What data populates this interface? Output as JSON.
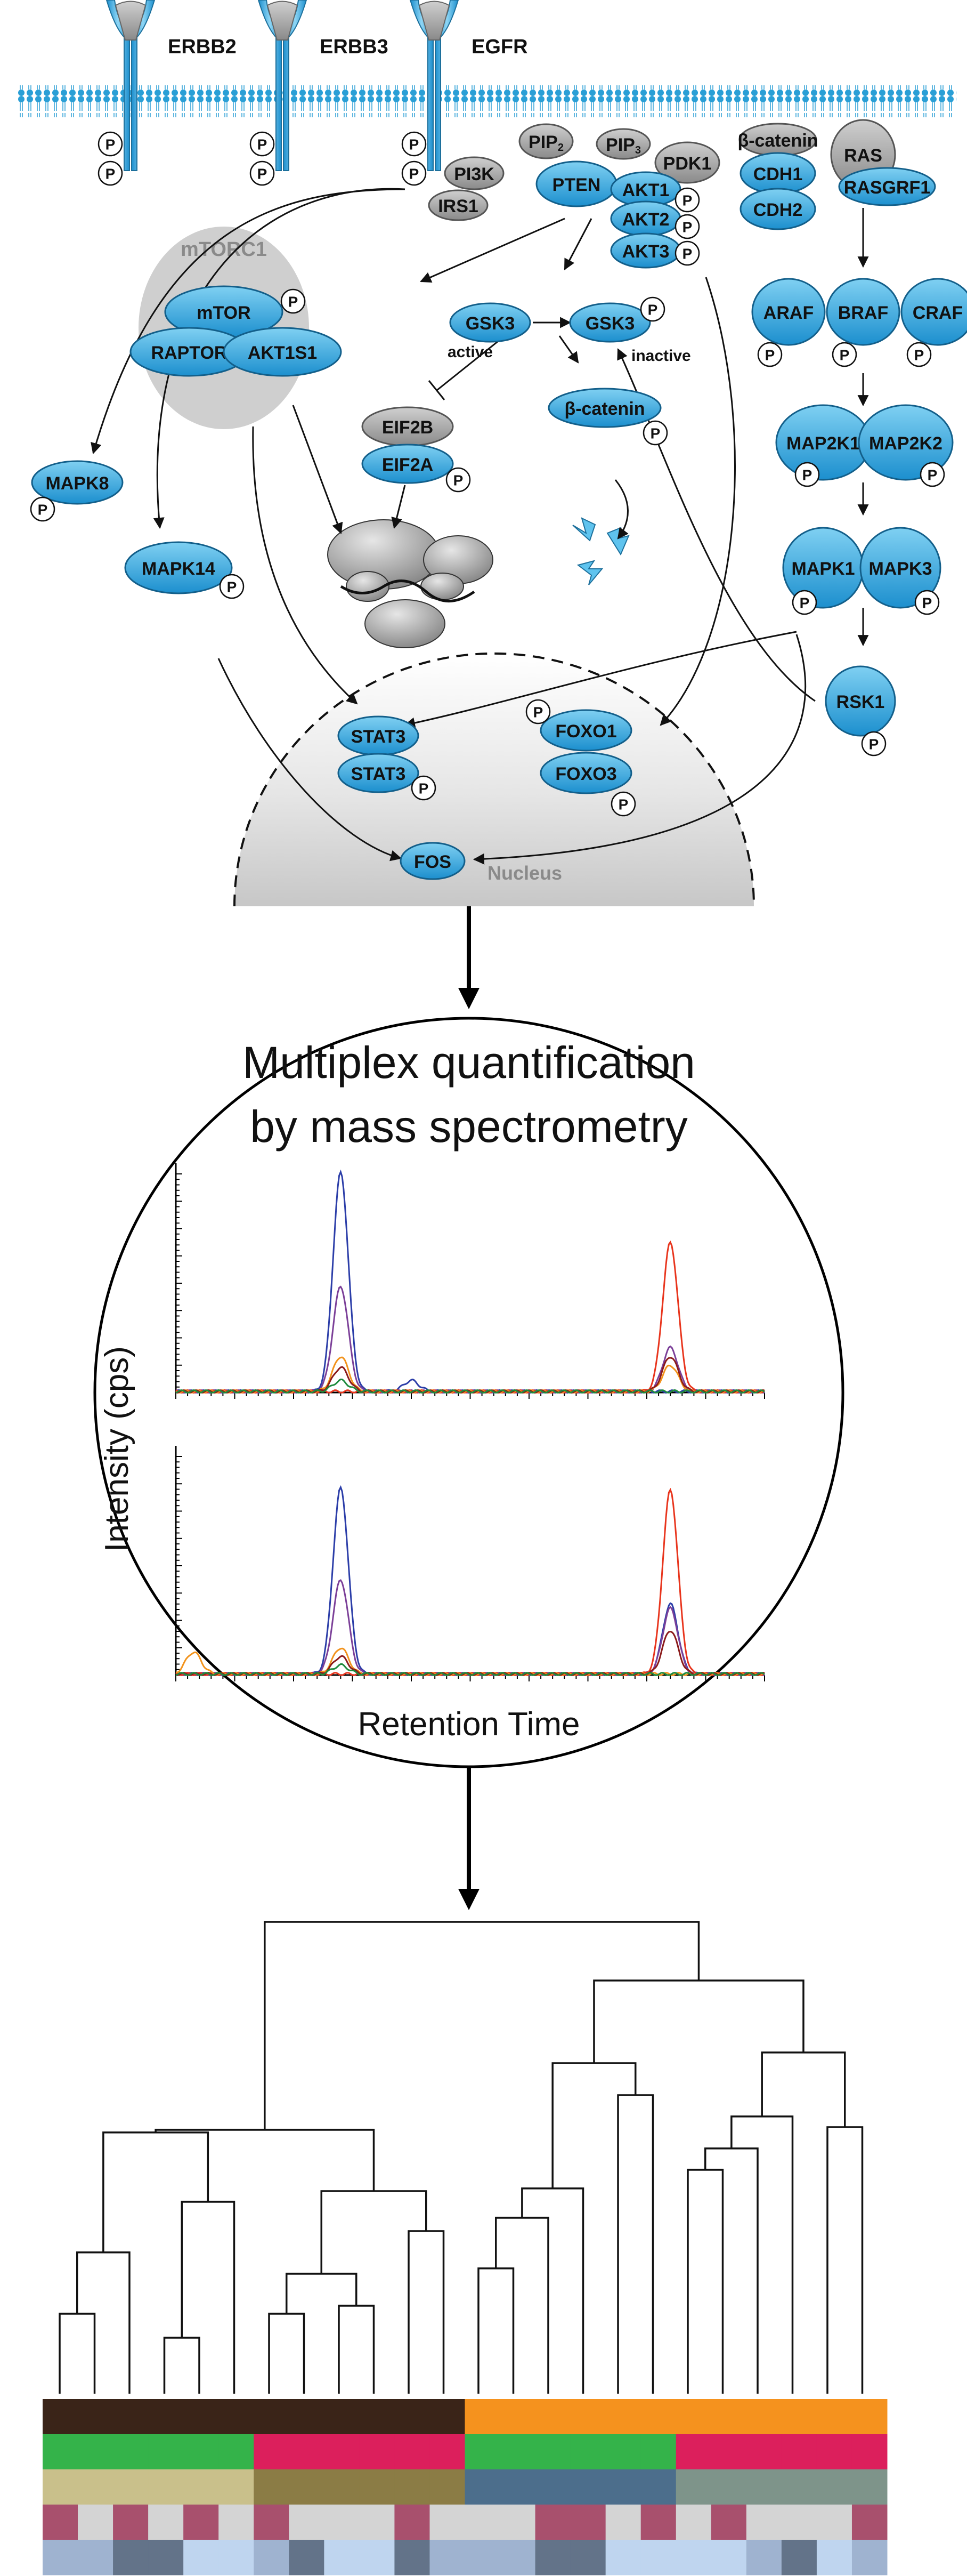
{
  "receptors": [
    {
      "id": "erbb2",
      "label": "ERBB2"
    },
    {
      "id": "erbb3",
      "label": "ERBB3"
    },
    {
      "id": "egfr",
      "label": "EGFR"
    }
  ],
  "proteins": {
    "pip2": "PIP",
    "pip2_sub": "2",
    "pip3": "PIP",
    "pip3_sub": "3",
    "pi3k": "PI3K",
    "irs1": "IRS1",
    "pten": "PTEN",
    "pdk1": "PDK1",
    "akt1": "AKT1",
    "akt2": "AKT2",
    "akt3": "AKT3",
    "catenin_top": "β-catenin",
    "cdh1": "CDH1",
    "cdh2": "CDH2",
    "ras": "RAS",
    "rasgrf1": "RASGRF1",
    "mtorc1": "mTORC1",
    "mtor": "mTOR",
    "raptor": "RAPTOR",
    "akt1s1": "AKT1S1",
    "gsk3_active": "GSK3",
    "gsk3_inactive": "GSK3",
    "active": "active",
    "inactive": "inactive",
    "eif2b": "EIF2B",
    "eif2a": "EIF2A",
    "beta_catenin": "β-catenin",
    "mapk8": "MAPK8",
    "mapk14": "MAPK14",
    "araf": "ARAF",
    "braf": "BRAF",
    "craf": "CRAF",
    "map2k1": "MAP2K1",
    "map2k2": "MAP2K2",
    "mapk1": "MAPK1",
    "mapk3": "MAPK3",
    "rsk1": "RSK1",
    "stat3a": "STAT3",
    "stat3b": "STAT3",
    "foxo1": "FOXO1",
    "foxo3": "FOXO3",
    "fos": "FOS",
    "nucleus": "Nucleus"
  },
  "phospho_label": "P",
  "quant": {
    "title_line1": "Multiplex quantification",
    "title_line2": "by mass spectrometry",
    "ylabel": "Intensity (cps)",
    "xlabel": "Retention Time"
  },
  "colors": {
    "protein_blue": "#2a9fd6",
    "protein_gray": "#9a9a9a",
    "nucleus_gray": "#d9d9d9",
    "mtorc1_gray": "#cfcfcf"
  },
  "chart_data": [
    {
      "type": "line",
      "title": "",
      "xlabel": "",
      "ylabel": "",
      "series": [
        {
          "color": "#2b3da8",
          "peaks": [
            [
              28,
              1.0
            ],
            [
              40,
              0.05
            ]
          ]
        },
        {
          "color": "#7b3f98",
          "peaks": [
            [
              28,
              0.48
            ],
            [
              84,
              0.2
            ]
          ]
        },
        {
          "color": "#e8341c",
          "peaks": [
            [
              84,
              0.68
            ]
          ]
        },
        {
          "color": "#f2931c",
          "peaks": [
            [
              28,
              0.16
            ],
            [
              84,
              0.12
            ]
          ]
        },
        {
          "color": "#8b1a1a",
          "peaks": [
            [
              28,
              0.11
            ],
            [
              84,
              0.16
            ]
          ]
        },
        {
          "color": "#1e8a3c",
          "peaks": [
            [
              28,
              0.05
            ]
          ]
        }
      ]
    },
    {
      "type": "line",
      "title": "",
      "xlabel": "",
      "ylabel": "",
      "series": [
        {
          "color": "#2b3da8",
          "peaks": [
            [
              28,
              0.85
            ],
            [
              84,
              0.32
            ]
          ]
        },
        {
          "color": "#7b3f98",
          "peaks": [
            [
              28,
              0.43
            ],
            [
              84,
              0.3
            ]
          ]
        },
        {
          "color": "#e8341c",
          "peaks": [
            [
              84,
              0.84
            ]
          ]
        },
        {
          "color": "#f2931c",
          "peaks": [
            [
              3,
              0.1
            ],
            [
              28,
              0.12
            ]
          ]
        },
        {
          "color": "#8b1a1a",
          "peaks": [
            [
              28,
              0.08
            ],
            [
              84,
              0.2
            ]
          ]
        },
        {
          "color": "#1e8a3c",
          "peaks": [
            [
              28,
              0.04
            ]
          ]
        }
      ]
    }
  ],
  "heatmap": {
    "rows": [
      [
        "#3a2418",
        "#3a2418",
        "#3a2418",
        "#3a2418",
        "#3a2418",
        "#3a2418",
        "#3a2418",
        "#3a2418",
        "#3a2418",
        "#3a2418",
        "#3a2418",
        "#3a2418",
        "#f5921e",
        "#f5921e",
        "#f5921e",
        "#f5921e",
        "#f5921e",
        "#f5921e",
        "#f5921e",
        "#f5921e",
        "#f5921e",
        "#f5921e",
        "#f5921e",
        "#f5921e"
      ],
      [
        "#34b34a",
        "#34b34a",
        "#34b34a",
        "#34b34a",
        "#34b34a",
        "#34b34a",
        "#dc1f5c",
        "#dc1f5c",
        "#dc1f5c",
        "#dc1f5c",
        "#dc1f5c",
        "#dc1f5c",
        "#34b34a",
        "#34b34a",
        "#34b34a",
        "#34b34a",
        "#34b34a",
        "#34b34a",
        "#dc1f5c",
        "#dc1f5c",
        "#dc1f5c",
        "#dc1f5c",
        "#dc1f5c",
        "#dc1f5c"
      ],
      [
        "#c9c08b",
        "#c9c08b",
        "#c9c08b",
        "#c9c08b",
        "#c9c08b",
        "#c9c08b",
        "#8b7c45",
        "#8b7c45",
        "#8b7c45",
        "#8b7c45",
        "#8b7c45",
        "#8b7c45",
        "#4c6e8c",
        "#4c6e8c",
        "#4c6e8c",
        "#4c6e8c",
        "#4c6e8c",
        "#4c6e8c",
        "#7e948a",
        "#7e948a",
        "#7e948a",
        "#7e948a",
        "#7e948a",
        "#7e948a"
      ],
      [
        "#a8506d",
        "#d4d4d4",
        "#a8506d",
        "#d4d4d4",
        "#a8506d",
        "#d4d4d4",
        "#a8506d",
        "#d4d4d4",
        "#d4d4d4",
        "#d4d4d4",
        "#a8506d",
        "#d4d4d4",
        "#d4d4d4",
        "#d4d4d4",
        "#a8506d",
        "#a8506d",
        "#d4d4d4",
        "#a8506d",
        "#d4d4d4",
        "#a8506d",
        "#d4d4d4",
        "#d4d4d4",
        "#d4d4d4",
        "#a8506d"
      ],
      [
        "#9fb3d0",
        "#9fb3d0",
        "#637389",
        "#637389",
        "#bfd5ef",
        "#bfd5ef",
        "#9fb3d0",
        "#637389",
        "#bfd5ef",
        "#bfd5ef",
        "#637389",
        "#9fb3d0",
        "#9fb3d0",
        "#9fb3d0",
        "#637389",
        "#637389",
        "#bfd5ef",
        "#bfd5ef",
        "#bfd5ef",
        "#bfd5ef",
        "#9fb3d0",
        "#637389",
        "#bfd5ef",
        "#9fb3d0"
      ]
    ]
  }
}
